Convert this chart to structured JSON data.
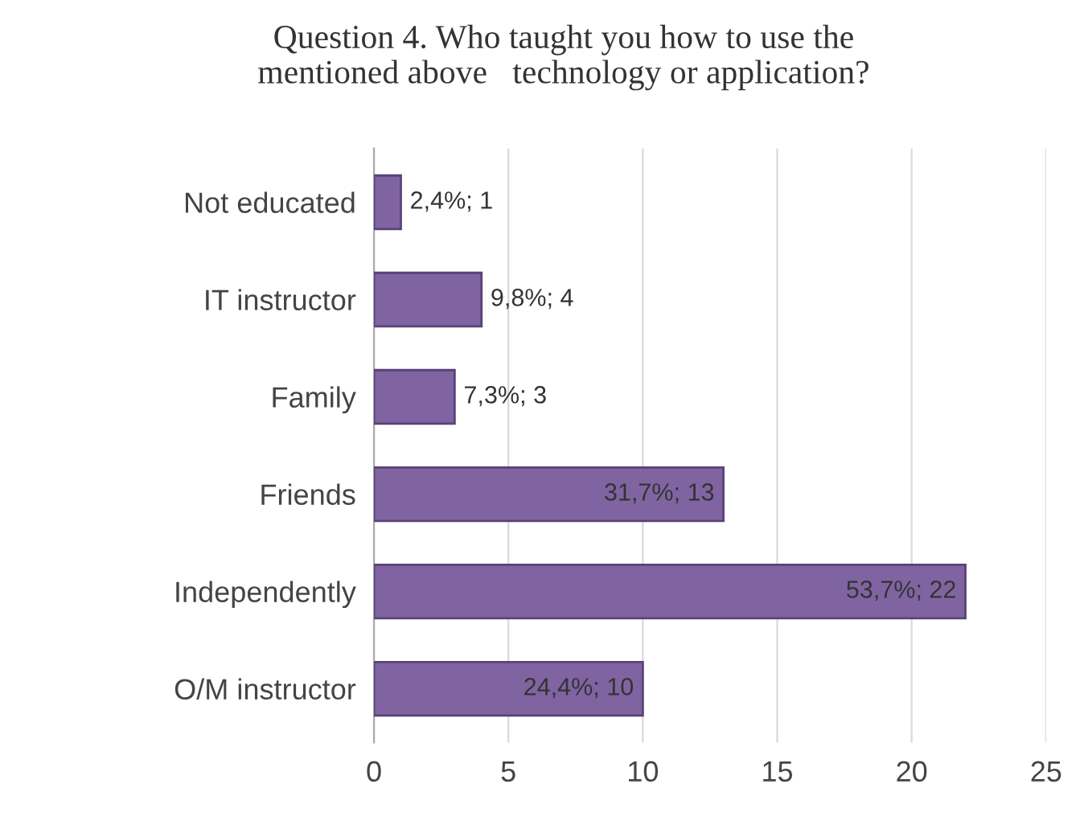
{
  "chart_data": {
    "type": "bar",
    "orientation": "horizontal",
    "title": "Question 4. Who taught you how to use the\nmentioned above   technology or application?",
    "categories": [
      "Not educated",
      "IT instructor",
      "Family",
      "Friends",
      "Independently",
      "O/M instructor"
    ],
    "values": [
      1,
      4,
      3,
      13,
      22,
      10
    ],
    "value_labels": [
      "2,4%; 1",
      "9,8%; 4",
      "7,3%; 3",
      "31,7%; 13",
      "53,7%; 22",
      "24,4%; 10"
    ],
    "color": "#8064a2",
    "xlim": [
      0,
      25
    ],
    "xticks": [
      0,
      5,
      10,
      15,
      20,
      25
    ],
    "grid": "x",
    "legend": false
  }
}
